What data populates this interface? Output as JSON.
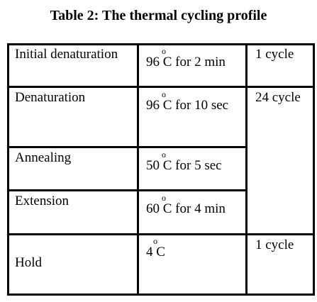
{
  "title": "Table 2: The thermal cycling profile",
  "rows": [
    {
      "step": "Initial denaturation",
      "temp_value": "96",
      "degree": "o",
      "temp_unit_time": "C for 2 min",
      "cycles": "1 cycle"
    },
    {
      "step": "Denaturation",
      "temp_value": "96",
      "degree": "o",
      "temp_unit_time": "C for 10 sec",
      "cycles": "24 cycle"
    },
    {
      "step": "Annealing",
      "temp_value": "50",
      "degree": "o",
      "temp_unit_time": "C for 5 sec",
      "cycles": ""
    },
    {
      "step": "Extension",
      "temp_value": "60",
      "degree": "o",
      "temp_unit_time": "C for 4 min",
      "cycles": ""
    },
    {
      "step": "Hold",
      "temp_value": "4",
      "degree": "o",
      "temp_unit_time": "C",
      "cycles": "1 cycle"
    }
  ]
}
